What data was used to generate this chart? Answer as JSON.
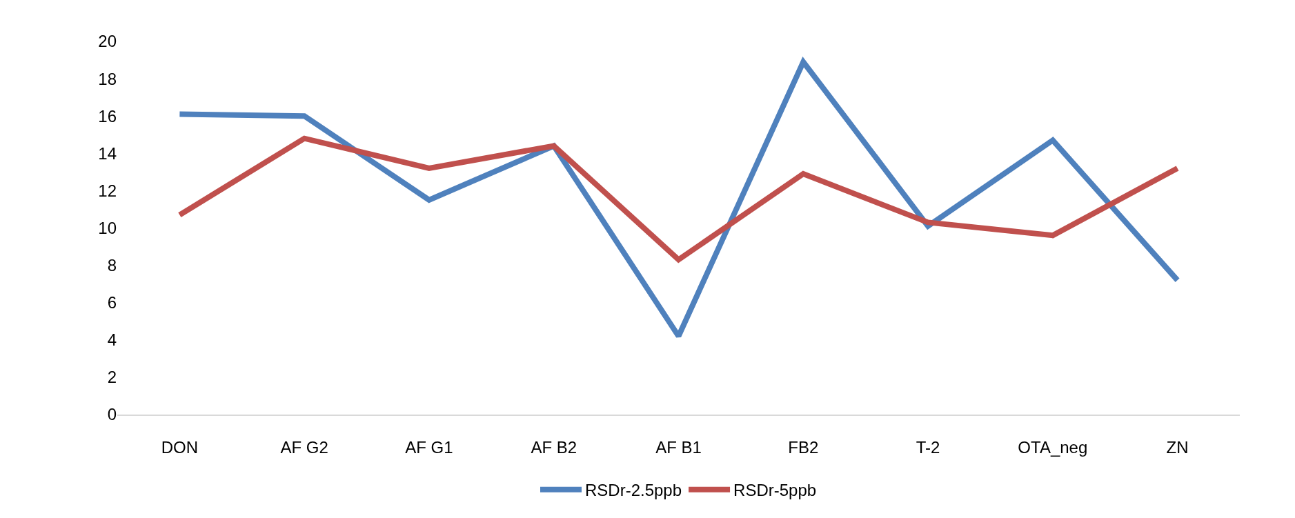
{
  "chart_data": {
    "type": "line",
    "categories": [
      "DON",
      "AF G2",
      "AF G1",
      "AF B2",
      "AF B1",
      "FB2",
      "T-2",
      "OTA_neg",
      "ZN"
    ],
    "series": [
      {
        "name": "RSDr-2.5ppb",
        "color": "#4f81bd",
        "values": [
          16.1,
          16.0,
          11.5,
          14.4,
          4.2,
          18.9,
          10.1,
          14.7,
          7.2
        ]
      },
      {
        "name": "RSDr-5ppb",
        "color": "#c0504d",
        "values": [
          10.7,
          14.8,
          13.2,
          14.4,
          8.3,
          12.9,
          10.3,
          9.6,
          13.2
        ]
      }
    ],
    "ylim": [
      0,
      20
    ],
    "yticks": [
      0,
      2,
      4,
      6,
      8,
      10,
      12,
      14,
      16,
      18,
      20
    ],
    "legend": "bottom",
    "marker": "none",
    "line_style": "solid"
  }
}
